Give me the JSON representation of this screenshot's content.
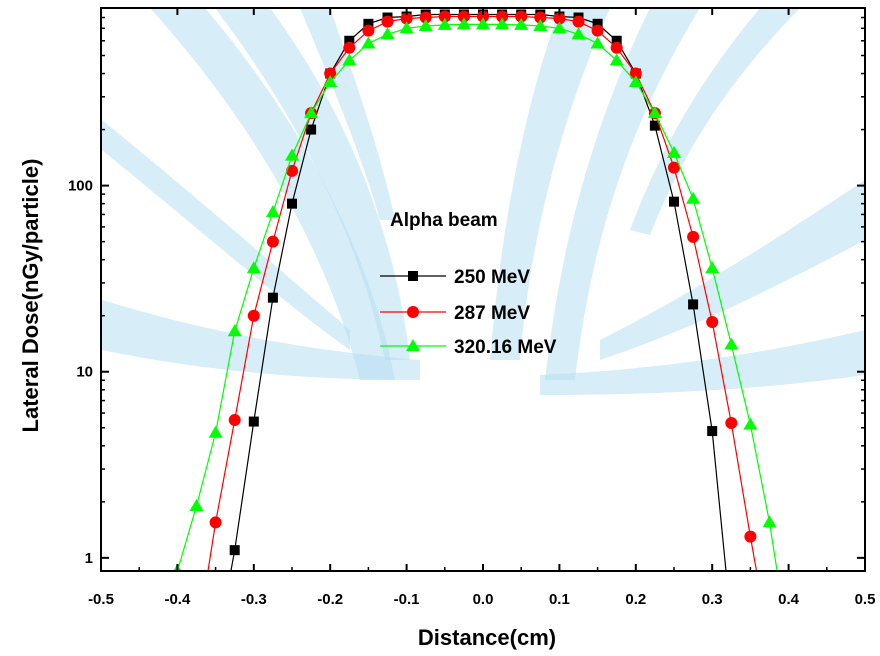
{
  "chart_data": {
    "type": "line",
    "scale_y": "log",
    "grid": false,
    "xlabel": "Distance(cm)",
    "ylabel": "Lateral Dose(nGy/particle)",
    "xlim": [
      -0.5,
      0.5
    ],
    "ylim": [
      0.85,
      900
    ],
    "x_ticks": [
      "-0.5",
      "-0.4",
      "-0.3",
      "-0.2",
      "-0.1",
      "0.0",
      "0.1",
      "0.2",
      "0.3",
      "0.4",
      "0.5"
    ],
    "y_ticks": [
      {
        "value": 1,
        "label": "1"
      },
      {
        "value": 10,
        "label": "10"
      },
      {
        "value": 100,
        "label": "100"
      }
    ],
    "annotation": "Alpha beam",
    "legend_position": "center-left",
    "series": [
      {
        "name": "250 MeV",
        "color": "#000000",
        "marker": "square",
        "line_style": "solid",
        "points": [
          [
            -0.325,
            1.1
          ],
          [
            -0.3,
            5.4
          ],
          [
            -0.275,
            25
          ],
          [
            -0.25,
            80
          ],
          [
            -0.225,
            200
          ],
          [
            -0.2,
            400
          ],
          [
            -0.175,
            600
          ],
          [
            -0.15,
            740
          ],
          [
            -0.125,
            800
          ],
          [
            -0.1,
            810
          ],
          [
            -0.075,
            830
          ],
          [
            -0.05,
            830
          ],
          [
            -0.025,
            830
          ],
          [
            0.0,
            830
          ],
          [
            0.025,
            830
          ],
          [
            0.05,
            830
          ],
          [
            0.075,
            830
          ],
          [
            0.1,
            810
          ],
          [
            0.125,
            800
          ],
          [
            0.15,
            740
          ],
          [
            0.175,
            600
          ],
          [
            0.2,
            400
          ],
          [
            0.225,
            210
          ],
          [
            0.25,
            82
          ],
          [
            0.275,
            23
          ],
          [
            0.3,
            4.8
          ]
        ],
        "line_extends_to": {
          "start": [
            -0.33,
            0.85
          ],
          "end": [
            0.318,
            0.85
          ]
        }
      },
      {
        "name": "287 MeV",
        "color": "#ff0000",
        "marker": "circle",
        "line_style": "solid",
        "points": [
          [
            -0.35,
            1.55
          ],
          [
            -0.325,
            5.5
          ],
          [
            -0.3,
            20
          ],
          [
            -0.275,
            50
          ],
          [
            -0.25,
            120
          ],
          [
            -0.225,
            245
          ],
          [
            -0.2,
            400
          ],
          [
            -0.175,
            550
          ],
          [
            -0.15,
            680
          ],
          [
            -0.125,
            760
          ],
          [
            -0.1,
            790
          ],
          [
            -0.075,
            800
          ],
          [
            -0.05,
            810
          ],
          [
            -0.025,
            810
          ],
          [
            0.0,
            810
          ],
          [
            0.025,
            810
          ],
          [
            0.05,
            810
          ],
          [
            0.075,
            800
          ],
          [
            0.1,
            790
          ],
          [
            0.125,
            760
          ],
          [
            0.15,
            680
          ],
          [
            0.175,
            550
          ],
          [
            0.2,
            400
          ],
          [
            0.225,
            245
          ],
          [
            0.25,
            125
          ],
          [
            0.275,
            53
          ],
          [
            0.3,
            18.5
          ],
          [
            0.325,
            5.3
          ],
          [
            0.35,
            1.3
          ]
        ],
        "line_extends_to": {
          "start": [
            -0.36,
            0.85
          ],
          "end": [
            0.358,
            0.85
          ]
        }
      },
      {
        "name": "320.16 MeV",
        "color": "#00ff00",
        "marker": "triangle",
        "line_style": "solid",
        "points": [
          [
            -0.4,
            0.85
          ],
          [
            -0.375,
            1.9
          ],
          [
            -0.35,
            4.7
          ],
          [
            -0.325,
            16.5
          ],
          [
            -0.3,
            36
          ],
          [
            -0.275,
            72
          ],
          [
            -0.25,
            145
          ],
          [
            -0.225,
            245
          ],
          [
            -0.2,
            360
          ],
          [
            -0.175,
            470
          ],
          [
            -0.15,
            580
          ],
          [
            -0.125,
            650
          ],
          [
            -0.1,
            700
          ],
          [
            -0.075,
            720
          ],
          [
            -0.05,
            730
          ],
          [
            -0.025,
            735
          ],
          [
            0.0,
            735
          ],
          [
            0.025,
            735
          ],
          [
            0.05,
            730
          ],
          [
            0.075,
            720
          ],
          [
            0.1,
            700
          ],
          [
            0.125,
            650
          ],
          [
            0.15,
            580
          ],
          [
            0.175,
            470
          ],
          [
            0.2,
            360
          ],
          [
            0.225,
            245
          ],
          [
            0.25,
            150
          ],
          [
            0.275,
            85
          ],
          [
            0.3,
            36
          ],
          [
            0.325,
            14
          ],
          [
            0.35,
            5.2
          ],
          [
            0.375,
            1.55
          ]
        ],
        "line_extends_to": {
          "start": [
            -0.41,
            0.75
          ],
          "end": [
            0.385,
            0.85
          ]
        }
      }
    ]
  },
  "background": {
    "watermark_color": "#b7dff2"
  }
}
